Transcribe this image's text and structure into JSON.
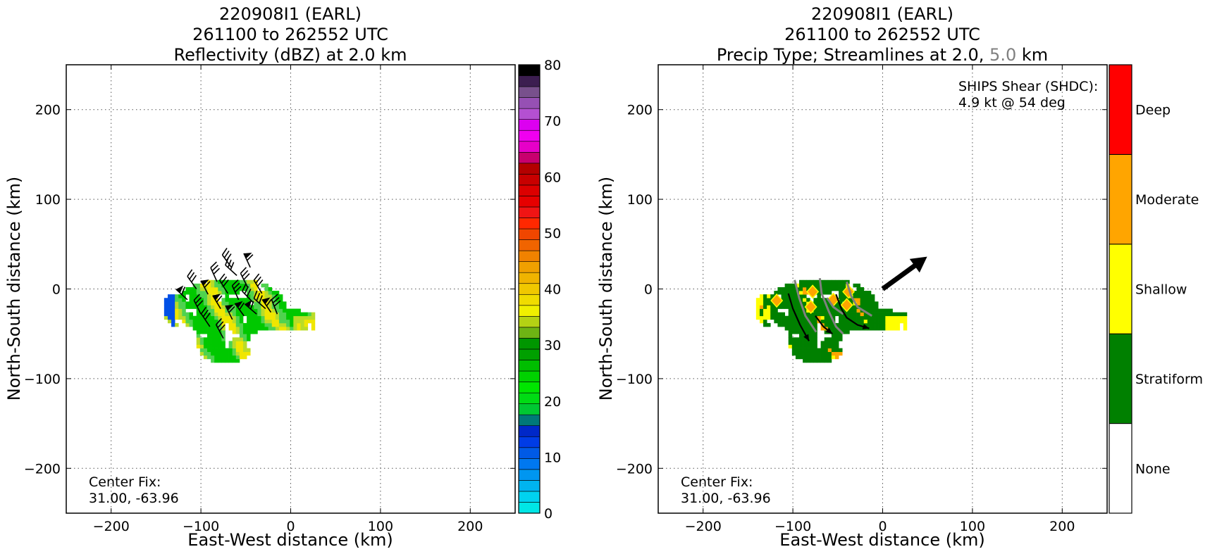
{
  "chart_data": [
    {
      "type": "heatmap",
      "title_lines": [
        "220908I1 (EARL)",
        "261100 to 262552 UTC",
        "Reflectivity (dBZ) at 2.0 km"
      ],
      "xlabel": "East-West distance (km)",
      "ylabel": "North-South distance (km)",
      "xlim": [
        -250,
        250
      ],
      "ylim": [
        -250,
        250
      ],
      "xticks": [
        -200,
        -100,
        0,
        100,
        200
      ],
      "yticks": [
        -200,
        -100,
        0,
        100,
        200
      ],
      "grid": true,
      "annotation": [
        "Center Fix:",
        "31.00, -63.96"
      ],
      "colorbar": {
        "label": "dBZ",
        "min": 0,
        "max": 80,
        "ticks": [
          0,
          10,
          20,
          30,
          40,
          50,
          60,
          70,
          80
        ],
        "colors": [
          "#00e6e6",
          "#00d2f0",
          "#00b4f0",
          "#0096f0",
          "#0078f0",
          "#005ae6",
          "#003ce6",
          "#0028c8",
          "#007878",
          "#00c832",
          "#00dc14",
          "#00e600",
          "#00d200",
          "#00be00",
          "#00a000",
          "#009600",
          "#6eb414",
          "#b4d214",
          "#f0f000",
          "#f0dc00",
          "#f0c800",
          "#f0b400",
          "#f0a000",
          "#f08200",
          "#f06400",
          "#f04600",
          "#ff2800",
          "#f01414",
          "#e60000",
          "#dc0000",
          "#c80000",
          "#b40000",
          "#c8006e",
          "#e600c8",
          "#f000f0",
          "#dc00f0",
          "#b450d2",
          "#9650b4",
          "#78508c",
          "#3c1e50",
          "#000000"
        ]
      },
      "echo_category_colors": {
        "stratiform": "#00c800",
        "weak": "#4fd24f",
        "moderate": "#b9dc28",
        "strong": "#f0e600",
        "low": "#0050e6",
        "very_low": "#00c8f0"
      }
    },
    {
      "type": "heatmap",
      "title_lines": [
        "220908I1 (EARL)",
        "261100 to 262552 UTC"
      ],
      "title_line3_parts": [
        "Precip Type; Streamlines at 2.0,",
        "5.0",
        "km"
      ],
      "xlabel": "East-West distance (km)",
      "ylabel": "North-South distance (km)",
      "xlim": [
        -250,
        250
      ],
      "ylim": [
        -250,
        250
      ],
      "xticks": [
        -200,
        -100,
        0,
        100,
        200
      ],
      "yticks": [
        -200,
        -100,
        0,
        100,
        200
      ],
      "grid": true,
      "annotation": [
        "Center Fix:",
        "31.00, -63.96"
      ],
      "shear_text": [
        "SHIPS Shear (SHDC):",
        "4.9 kt @ 54 deg"
      ],
      "shear": {
        "speed_kt": 4.9,
        "direction_deg": 54
      },
      "categories": [
        {
          "label": "None",
          "color": "#ffffff"
        },
        {
          "label": "Stratiform",
          "color": "#008000"
        },
        {
          "label": "Shallow",
          "color": "#ffff00"
        },
        {
          "label": "Moderate",
          "color": "#ffa500"
        },
        {
          "label": "Deep",
          "color": "#ff0000"
        }
      ],
      "streamline_colors": {
        "2.0": "#000000",
        "5.0": "#808080"
      }
    }
  ]
}
